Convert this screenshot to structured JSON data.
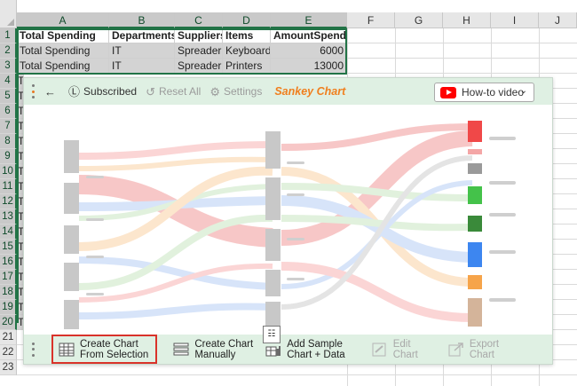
{
  "sheet": {
    "columns": [
      "A",
      "B",
      "C",
      "D",
      "E",
      "F",
      "G",
      "H",
      "I",
      "J"
    ],
    "rows": [
      "1",
      "2",
      "3",
      "4",
      "5",
      "6",
      "7",
      "8",
      "9",
      "10",
      "11",
      "12",
      "13",
      "14",
      "15",
      "16",
      "17",
      "18",
      "19",
      "20",
      "21",
      "22",
      "23"
    ],
    "header_row": [
      "Total Spending",
      "Departments",
      "Suppliers",
      "Items",
      "AmountSpend"
    ],
    "data_rows": [
      [
        "Total Spending",
        "IT",
        "Spreader",
        "Keyboards",
        "6000"
      ],
      [
        "Total Spending",
        "IT",
        "Spreader",
        "Printers",
        "13000"
      ]
    ],
    "partial_col_a": "T"
  },
  "toolbar": {
    "subscribed_label": "Subscribed",
    "reset_label": "Reset All",
    "settings_label": "Settings",
    "brand_label": "Sankey Chart",
    "howto_label": "How-to video"
  },
  "footer": {
    "create_selection_line1": "Create Chart",
    "create_selection_line2": "From Selection",
    "create_manual_line1": "Create Chart",
    "create_manual_line2": "Manually",
    "add_sample_line1": "Add Sample",
    "add_sample_line2": "Chart + Data",
    "edit_line1": "Edit",
    "edit_line2": "Chart",
    "export_line1": "Export",
    "export_line2": "Chart"
  },
  "colors": {
    "excel_green": "#217346",
    "panel_bg": "#dff0e3",
    "brand_orange": "#f07f1e",
    "highlight_red": "#d9322a"
  }
}
